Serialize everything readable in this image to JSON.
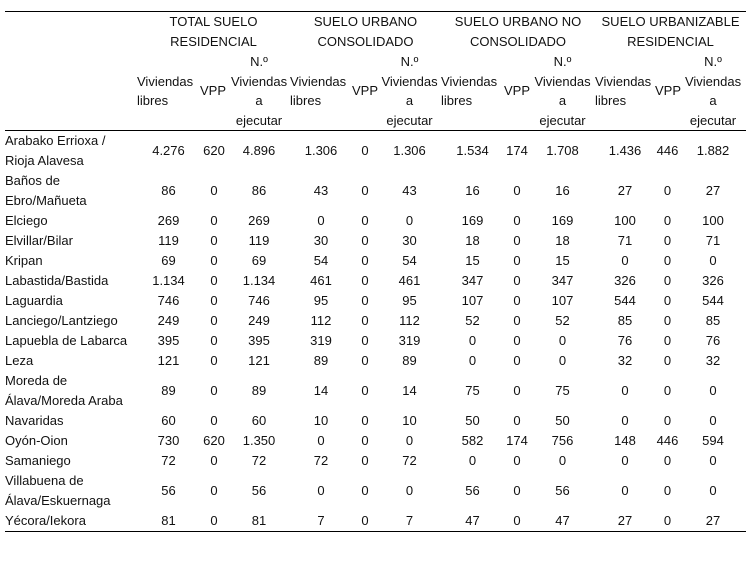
{
  "groups": [
    "TOTAL SUELO\nRESIDENCIAL",
    "SUELO URBANO\nCONSOLIDADO",
    "SUELO URBANO NO\nCONSOLIDADO",
    "SUELO URBANIZABLE\nRESIDENCIAL"
  ],
  "subheaders": {
    "libres": "Viviendas\nlibres",
    "vpp": "VPP",
    "total": "N.º\nViviendas\na\nejecutar"
  },
  "rows": [
    {
      "name": "Arabako Errioxa / Rioja Alavesa",
      "values": [
        "4.276",
        "620",
        "4.896",
        "1.306",
        "0",
        "1.306",
        "1.534",
        "174",
        "1.708",
        "1.436",
        "446",
        "1.882"
      ]
    },
    {
      "name": "Baños de Ebro/Mañueta",
      "values": [
        "86",
        "0",
        "86",
        "43",
        "0",
        "43",
        "16",
        "0",
        "16",
        "27",
        "0",
        "27"
      ]
    },
    {
      "name": "Elciego",
      "values": [
        "269",
        "0",
        "269",
        "0",
        "0",
        "0",
        "169",
        "0",
        "169",
        "100",
        "0",
        "100"
      ]
    },
    {
      "name": "Elvillar/Bilar",
      "values": [
        "119",
        "0",
        "119",
        "30",
        "0",
        "30",
        "18",
        "0",
        "18",
        "71",
        "0",
        "71"
      ]
    },
    {
      "name": "Kripan",
      "values": [
        "69",
        "0",
        "69",
        "54",
        "0",
        "54",
        "15",
        "0",
        "15",
        "0",
        "0",
        "0"
      ]
    },
    {
      "name": "Labastida/Bastida",
      "values": [
        "1.134",
        "0",
        "1.134",
        "461",
        "0",
        "461",
        "347",
        "0",
        "347",
        "326",
        "0",
        "326"
      ]
    },
    {
      "name": "Laguardia",
      "values": [
        "746",
        "0",
        "746",
        "95",
        "0",
        "95",
        "107",
        "0",
        "107",
        "544",
        "0",
        "544"
      ]
    },
    {
      "name": "Lanciego/Lantziego",
      "values": [
        "249",
        "0",
        "249",
        "112",
        "0",
        "112",
        "52",
        "0",
        "52",
        "85",
        "0",
        "85"
      ]
    },
    {
      "name": "Lapuebla de Labarca",
      "values": [
        "395",
        "0",
        "395",
        "319",
        "0",
        "319",
        "0",
        "0",
        "0",
        "76",
        "0",
        "76"
      ]
    },
    {
      "name": "Leza",
      "values": [
        "121",
        "0",
        "121",
        "89",
        "0",
        "89",
        "0",
        "0",
        "0",
        "32",
        "0",
        "32"
      ]
    },
    {
      "name": "Moreda de Álava/Moreda Araba",
      "values": [
        "89",
        "0",
        "89",
        "14",
        "0",
        "14",
        "75",
        "0",
        "75",
        "0",
        "0",
        "0"
      ]
    },
    {
      "name": "Navaridas",
      "values": [
        "60",
        "0",
        "60",
        "10",
        "0",
        "10",
        "50",
        "0",
        "50",
        "0",
        "0",
        "0"
      ]
    },
    {
      "name": "Oyón-Oion",
      "values": [
        "730",
        "620",
        "1.350",
        "0",
        "0",
        "0",
        "582",
        "174",
        "756",
        "148",
        "446",
        "594"
      ]
    },
    {
      "name": "Samaniego",
      "values": [
        "72",
        "0",
        "72",
        "72",
        "0",
        "72",
        "0",
        "0",
        "0",
        "0",
        "0",
        "0"
      ]
    },
    {
      "name": "Villabuena de Álava/Eskuernaga",
      "values": [
        "56",
        "0",
        "56",
        "0",
        "0",
        "0",
        "56",
        "0",
        "56",
        "0",
        "0",
        "0"
      ]
    },
    {
      "name": "Yécora/Iekora",
      "values": [
        "81",
        "0",
        "81",
        "7",
        "0",
        "7",
        "47",
        "0",
        "47",
        "27",
        "0",
        "27"
      ]
    }
  ]
}
